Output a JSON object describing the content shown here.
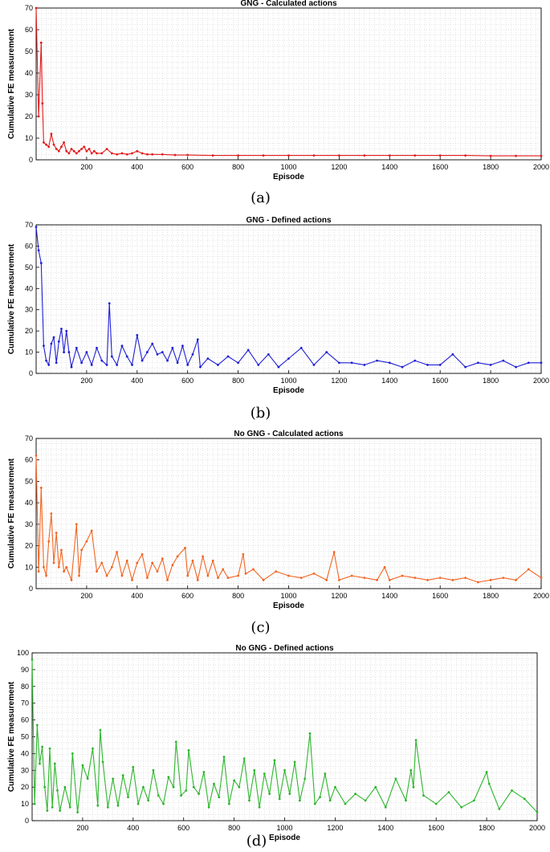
{
  "chart_data": [
    {
      "type": "line",
      "title": "GNG - Calculated actions",
      "xlabel": "Episode",
      "ylabel": "Cumulative FE measurement",
      "caption": "(a)",
      "color": "#e31a1c",
      "xlim": [
        0,
        2000
      ],
      "ylim": [
        0,
        70
      ],
      "xticks": [
        200,
        400,
        600,
        800,
        1000,
        1200,
        1400,
        1600,
        1800,
        2000
      ],
      "yticks": [
        0,
        10,
        20,
        30,
        40,
        50,
        60,
        70
      ],
      "grid": true,
      "x": [
        0,
        10,
        20,
        25,
        30,
        40,
        50,
        60,
        70,
        80,
        90,
        100,
        110,
        120,
        130,
        140,
        150,
        160,
        170,
        180,
        190,
        200,
        210,
        220,
        230,
        240,
        260,
        280,
        300,
        320,
        340,
        360,
        380,
        400,
        420,
        440,
        460,
        500,
        550,
        600,
        700,
        800,
        900,
        1000,
        1100,
        1200,
        1300,
        1400,
        1500,
        1600,
        1700,
        1800,
        1900,
        2000
      ],
      "values": [
        70,
        20,
        54,
        26,
        8,
        7,
        6,
        12,
        7,
        5,
        4,
        6,
        8,
        4,
        3,
        5,
        4,
        3,
        4,
        5,
        6,
        4,
        5,
        3,
        4,
        3,
        3,
        5,
        3,
        2.5,
        3,
        2.5,
        3,
        4,
        3,
        2.5,
        2.5,
        2.5,
        2.2,
        2.2,
        2,
        2,
        2,
        2,
        2,
        2,
        2,
        2,
        2,
        2,
        2,
        1.8,
        1.8,
        1.8
      ]
    },
    {
      "type": "line",
      "title": "GNG - Defined actions",
      "xlabel": "Episode",
      "ylabel": "Cumulative FE measurement",
      "caption": "(b)",
      "color": "#1f1fd6",
      "xlim": [
        0,
        2000
      ],
      "ylim": [
        0,
        70
      ],
      "xticks": [
        200,
        400,
        600,
        800,
        1000,
        1200,
        1400,
        1600,
        1800,
        2000
      ],
      "yticks": [
        0,
        10,
        20,
        30,
        40,
        50,
        60,
        70
      ],
      "grid": true,
      "x": [
        0,
        10,
        20,
        30,
        40,
        50,
        60,
        70,
        80,
        90,
        100,
        110,
        120,
        130,
        140,
        160,
        180,
        200,
        220,
        240,
        260,
        280,
        290,
        300,
        320,
        340,
        360,
        380,
        400,
        420,
        440,
        460,
        480,
        500,
        520,
        540,
        560,
        580,
        600,
        620,
        640,
        650,
        680,
        720,
        760,
        800,
        840,
        880,
        920,
        960,
        1000,
        1050,
        1100,
        1150,
        1200,
        1250,
        1300,
        1350,
        1400,
        1450,
        1500,
        1550,
        1600,
        1650,
        1700,
        1750,
        1800,
        1850,
        1900,
        1950,
        2000
      ],
      "values": [
        69,
        58,
        52,
        13,
        6,
        4,
        14,
        17,
        5,
        15,
        21,
        10,
        20,
        10,
        3,
        12,
        5,
        10,
        4,
        12,
        6,
        4,
        33,
        8,
        4,
        13,
        8,
        4,
        18,
        6,
        10,
        14,
        9,
        10,
        6,
        12,
        5,
        13,
        4,
        9,
        16,
        3,
        7,
        4,
        8,
        5,
        11,
        4,
        9,
        3,
        7,
        12,
        4,
        10,
        5,
        5,
        4,
        6,
        5,
        3,
        6,
        4,
        4,
        9,
        3,
        5,
        4,
        6,
        3,
        5,
        5
      ]
    },
    {
      "type": "line",
      "title": "No GNG - Calculated actions",
      "xlabel": "Episode",
      "ylabel": "Cumulative FE measurement",
      "caption": "(c)",
      "color": "#f26522",
      "xlim": [
        0,
        2000
      ],
      "ylim": [
        0,
        70
      ],
      "xticks": [
        200,
        400,
        600,
        800,
        1000,
        1200,
        1400,
        1600,
        1800,
        2000
      ],
      "yticks": [
        0,
        10,
        20,
        30,
        40,
        50,
        60,
        70
      ],
      "grid": true,
      "x": [
        0,
        10,
        20,
        30,
        40,
        50,
        60,
        70,
        80,
        90,
        100,
        110,
        120,
        140,
        160,
        170,
        180,
        200,
        220,
        240,
        260,
        280,
        300,
        320,
        340,
        360,
        380,
        400,
        420,
        440,
        460,
        480,
        500,
        520,
        540,
        560,
        590,
        600,
        620,
        640,
        660,
        680,
        700,
        720,
        740,
        760,
        800,
        820,
        830,
        860,
        900,
        950,
        1000,
        1050,
        1100,
        1150,
        1180,
        1200,
        1250,
        1300,
        1350,
        1380,
        1400,
        1450,
        1500,
        1550,
        1600,
        1650,
        1700,
        1750,
        1800,
        1850,
        1900,
        1950,
        2000
      ],
      "values": [
        62,
        8,
        47,
        10,
        6,
        22,
        35,
        12,
        26,
        10,
        18,
        8,
        10,
        4,
        30,
        6,
        18,
        22,
        27,
        8,
        12,
        6,
        10,
        17,
        6,
        13,
        4,
        12,
        16,
        5,
        12,
        8,
        14,
        4,
        11,
        15,
        19,
        6,
        13,
        4,
        15,
        6,
        13,
        5,
        9,
        5,
        6,
        16,
        7,
        9,
        4,
        8,
        6,
        5,
        7,
        4,
        17,
        4,
        6,
        5,
        4,
        10,
        4,
        6,
        5,
        4,
        5,
        4,
        5,
        3,
        4,
        5,
        4,
        9,
        5
      ]
    },
    {
      "type": "line",
      "title": "No GNG - Defined actions",
      "xlabel": "Episode",
      "ylabel": "Cumulative FE measurement",
      "caption": "(d)",
      "color": "#2db52d",
      "xlim": [
        0,
        2000
      ],
      "ylim": [
        0,
        100
      ],
      "xticks": [
        200,
        400,
        600,
        800,
        1000,
        1200,
        1400,
        1600,
        1800,
        2000
      ],
      "yticks": [
        0,
        10,
        20,
        30,
        40,
        50,
        60,
        70,
        80,
        90,
        100
      ],
      "grid": true,
      "x": [
        0,
        10,
        20,
        30,
        40,
        50,
        60,
        70,
        80,
        90,
        100,
        110,
        130,
        150,
        160,
        180,
        200,
        220,
        240,
        260,
        270,
        280,
        300,
        320,
        340,
        360,
        380,
        400,
        420,
        440,
        460,
        480,
        500,
        520,
        540,
        560,
        570,
        590,
        610,
        620,
        640,
        660,
        680,
        700,
        720,
        740,
        760,
        780,
        800,
        820,
        840,
        860,
        880,
        900,
        920,
        940,
        960,
        980,
        1000,
        1020,
        1040,
        1060,
        1080,
        1100,
        1120,
        1140,
        1160,
        1180,
        1200,
        1240,
        1280,
        1320,
        1360,
        1400,
        1440,
        1480,
        1500,
        1510,
        1520,
        1550,
        1600,
        1650,
        1700,
        1750,
        1800,
        1810,
        1850,
        1900,
        1950,
        2000
      ],
      "values": [
        96,
        10,
        57,
        34,
        44,
        20,
        6,
        43,
        8,
        34,
        18,
        6,
        20,
        8,
        40,
        5,
        33,
        25,
        43,
        9,
        54,
        35,
        8,
        25,
        9,
        27,
        14,
        32,
        10,
        20,
        12,
        30,
        15,
        10,
        26,
        20,
        47,
        15,
        18,
        42,
        20,
        16,
        29,
        8,
        22,
        14,
        38,
        10,
        24,
        20,
        37,
        12,
        30,
        8,
        28,
        16,
        36,
        13,
        30,
        16,
        35,
        12,
        25,
        52,
        10,
        14,
        28,
        12,
        20,
        10,
        16,
        12,
        20,
        8,
        25,
        12,
        30,
        20,
        48,
        15,
        10,
        17,
        8,
        12,
        29,
        22,
        7,
        18,
        13,
        5
      ]
    }
  ]
}
